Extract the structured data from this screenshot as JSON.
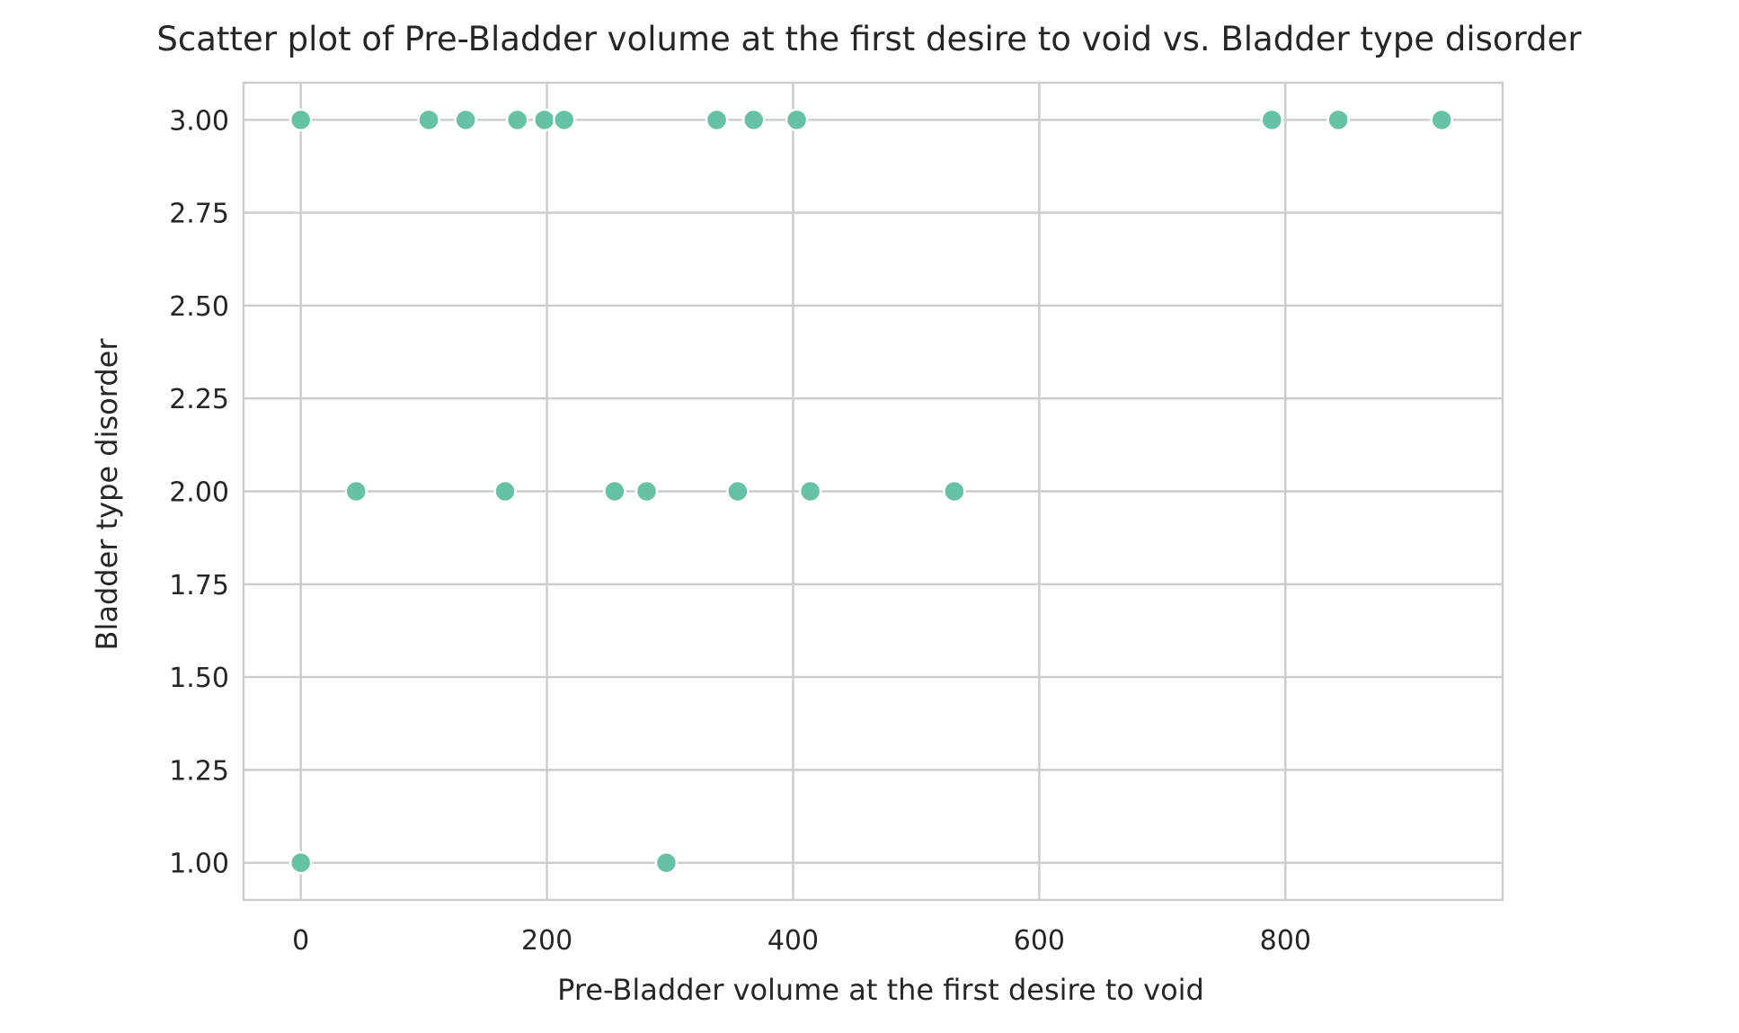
{
  "chart_data": {
    "type": "scatter",
    "title": "Scatter plot of Pre-Bladder volume at the first desire to void vs. Bladder type disorder",
    "xlabel": "Pre-Bladder volume at the first desire to void",
    "ylabel": "Bladder type disorder",
    "xlim": [
      -46.5,
      976.5
    ],
    "ylim": [
      0.9,
      3.1
    ],
    "x_ticks": [
      0,
      200,
      400,
      600,
      800
    ],
    "x_tick_labels": [
      "0",
      "200",
      "400",
      "600",
      "800"
    ],
    "y_ticks": [
      1.0,
      1.25,
      1.5,
      1.75,
      2.0,
      2.25,
      2.5,
      2.75,
      3.0
    ],
    "y_tick_labels": [
      "1.00",
      "1.25",
      "1.50",
      "1.75",
      "2.00",
      "2.25",
      "2.50",
      "2.75",
      "3.00"
    ],
    "grid": true,
    "legend": "none",
    "point_color": "#66c2a5",
    "points": [
      {
        "x": 0,
        "y": 3
      },
      {
        "x": 104,
        "y": 3
      },
      {
        "x": 134,
        "y": 3
      },
      {
        "x": 176,
        "y": 3
      },
      {
        "x": 198,
        "y": 3
      },
      {
        "x": 214,
        "y": 3
      },
      {
        "x": 338,
        "y": 3
      },
      {
        "x": 368,
        "y": 3
      },
      {
        "x": 403,
        "y": 3
      },
      {
        "x": 789,
        "y": 3
      },
      {
        "x": 843,
        "y": 3
      },
      {
        "x": 927,
        "y": 3
      },
      {
        "x": 45,
        "y": 2
      },
      {
        "x": 166,
        "y": 2
      },
      {
        "x": 255,
        "y": 2
      },
      {
        "x": 281,
        "y": 2
      },
      {
        "x": 355,
        "y": 2
      },
      {
        "x": 414,
        "y": 2
      },
      {
        "x": 531,
        "y": 2
      },
      {
        "x": 0,
        "y": 1
      },
      {
        "x": 297,
        "y": 1
      }
    ]
  }
}
